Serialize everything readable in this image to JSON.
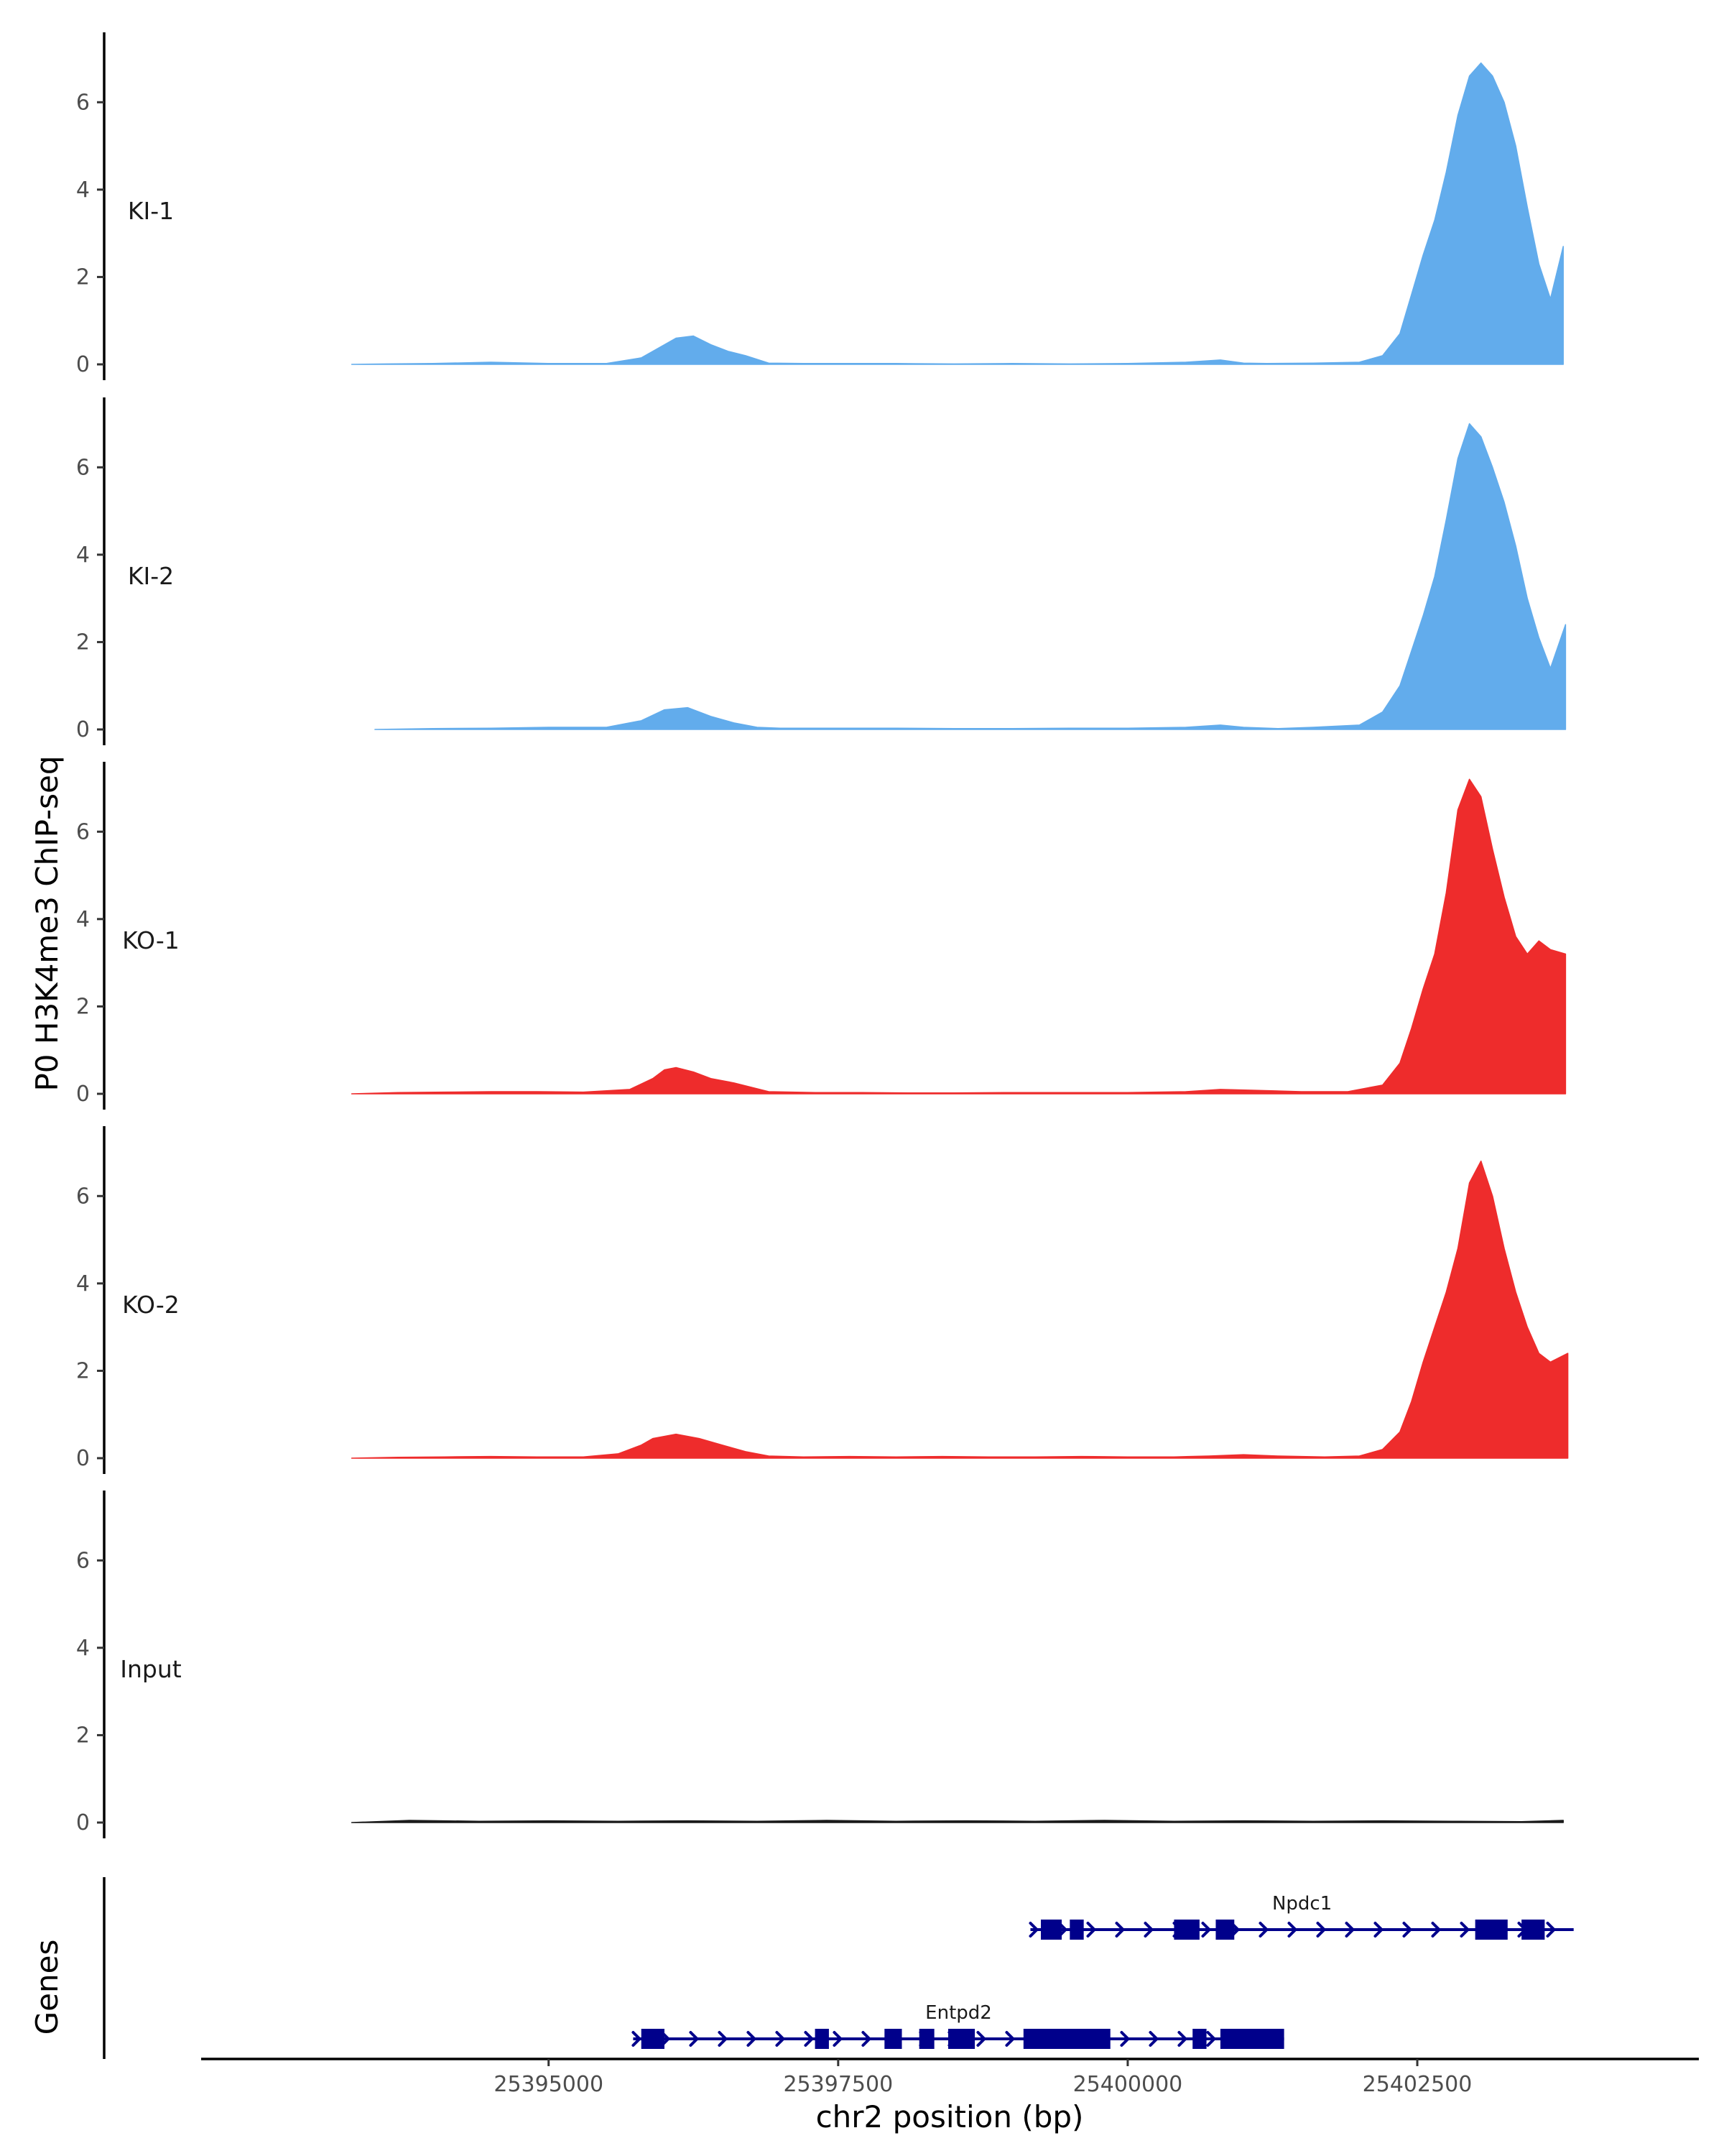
{
  "chart_data": {
    "type": "area",
    "title": "",
    "ylabel": "P0 H3K4me3 ChIP-seq",
    "genes_label": "Genes",
    "xlabel": "chr2 position (bp)",
    "xlim": [
      25392000,
      25404900
    ],
    "ylim": [
      0,
      7.6
    ],
    "x_ticks": [
      25395000,
      25397500,
      25400000,
      25402500
    ],
    "x_tick_labels": [
      "25395000",
      "25397500",
      "25400000",
      "25402500"
    ],
    "y_ticks": [
      0,
      2,
      4,
      6
    ],
    "y_tick_labels": [
      "0",
      "2",
      "4",
      "6"
    ],
    "grid": false,
    "legend": "none",
    "tracks": [
      {
        "name": "KI-1",
        "color": "#62ACEC",
        "x": [
          25393300,
          25393600,
          25394000,
          25394500,
          25395000,
          25395500,
          25395800,
          25396000,
          25396100,
          25396250,
          25396400,
          25396550,
          25396700,
          25396900,
          25397200,
          25397600,
          25398000,
          25398500,
          25399000,
          25399500,
          25400000,
          25400500,
          25400800,
          25401000,
          25401200,
          25401600,
          25402000,
          25402200,
          25402350,
          25402450,
          25402550,
          25402650,
          25402750,
          25402850,
          25402950,
          25403050,
          25403150,
          25403250,
          25403350,
          25403450,
          25403550,
          25403650,
          25403760,
          25403760
        ],
        "values": [
          0.0,
          0.01,
          0.02,
          0.05,
          0.02,
          0.02,
          0.15,
          0.45,
          0.6,
          0.65,
          0.45,
          0.3,
          0.2,
          0.03,
          0.02,
          0.02,
          0.02,
          0.01,
          0.02,
          0.01,
          0.02,
          0.05,
          0.1,
          0.03,
          0.02,
          0.03,
          0.05,
          0.2,
          0.7,
          1.6,
          2.5,
          3.3,
          4.4,
          5.7,
          6.6,
          6.9,
          6.6,
          6.0,
          5.0,
          3.6,
          2.3,
          1.5,
          2.7,
          0.0
        ]
      },
      {
        "name": "KI-2",
        "color": "#62ACEC",
        "x": [
          25393500,
          25394000,
          25394500,
          25395000,
          25395500,
          25395800,
          25396000,
          25396200,
          25396400,
          25396600,
          25396800,
          25397000,
          25397500,
          25398000,
          25398500,
          25399000,
          25399500,
          25400000,
          25400500,
          25400800,
          25401000,
          25401300,
          25401600,
          25402000,
          25402200,
          25402350,
          25402450,
          25402550,
          25402650,
          25402750,
          25402850,
          25402950,
          25403050,
          25403150,
          25403250,
          25403350,
          25403450,
          25403550,
          25403650,
          25403780,
          25403780
        ],
        "values": [
          0.0,
          0.02,
          0.03,
          0.05,
          0.05,
          0.2,
          0.45,
          0.5,
          0.3,
          0.15,
          0.05,
          0.03,
          0.03,
          0.03,
          0.02,
          0.02,
          0.03,
          0.03,
          0.05,
          0.1,
          0.05,
          0.02,
          0.05,
          0.1,
          0.4,
          1.0,
          1.8,
          2.6,
          3.5,
          4.8,
          6.2,
          7.0,
          6.7,
          6.0,
          5.2,
          4.2,
          3.0,
          2.1,
          1.4,
          2.4,
          0.0
        ]
      },
      {
        "name": "KO-1",
        "color": "#EE2C2C",
        "x": [
          25393300,
          25393700,
          25394100,
          25394500,
          25394900,
          25395300,
          25395700,
          25395900,
          25396000,
          25396100,
          25396250,
          25396400,
          25396600,
          25396900,
          25397300,
          25397700,
          25398100,
          25398500,
          25399000,
          25399500,
          25400000,
          25400500,
          25400800,
          25401100,
          25401500,
          25401900,
          25402200,
          25402350,
          25402450,
          25402550,
          25402650,
          25402750,
          25402850,
          25402950,
          25403050,
          25403150,
          25403250,
          25403350,
          25403450,
          25403550,
          25403650,
          25403780,
          25403780
        ],
        "values": [
          0.0,
          0.03,
          0.04,
          0.05,
          0.05,
          0.04,
          0.1,
          0.35,
          0.55,
          0.6,
          0.5,
          0.35,
          0.25,
          0.05,
          0.03,
          0.03,
          0.02,
          0.02,
          0.03,
          0.03,
          0.03,
          0.05,
          0.1,
          0.08,
          0.05,
          0.05,
          0.2,
          0.7,
          1.5,
          2.4,
          3.2,
          4.6,
          6.5,
          7.2,
          6.8,
          5.6,
          4.5,
          3.6,
          3.2,
          3.5,
          3.3,
          3.2,
          0.0
        ]
      },
      {
        "name": "KO-2",
        "color": "#EE2C2C",
        "x": [
          25393300,
          25393700,
          25394100,
          25394500,
          25394900,
          25395300,
          25395600,
          25395800,
          25395900,
          25396000,
          25396100,
          25396300,
          25396500,
          25396700,
          25396900,
          25397200,
          25397600,
          25398000,
          25398400,
          25398800,
          25399200,
          25399600,
          25400000,
          25400400,
          25400700,
          25401000,
          25401300,
          25401700,
          25402000,
          25402200,
          25402350,
          25402450,
          25402550,
          25402650,
          25402750,
          25402850,
          25402950,
          25403050,
          25403150,
          25403250,
          25403350,
          25403450,
          25403550,
          25403650,
          25403800,
          25403800
        ],
        "values": [
          0.0,
          0.02,
          0.03,
          0.04,
          0.03,
          0.03,
          0.1,
          0.3,
          0.45,
          0.5,
          0.55,
          0.45,
          0.3,
          0.15,
          0.05,
          0.03,
          0.04,
          0.03,
          0.04,
          0.03,
          0.03,
          0.04,
          0.03,
          0.03,
          0.05,
          0.08,
          0.05,
          0.03,
          0.05,
          0.2,
          0.6,
          1.3,
          2.2,
          3.0,
          3.8,
          4.8,
          6.3,
          6.8,
          6.0,
          4.8,
          3.8,
          3.0,
          2.4,
          2.2,
          2.4,
          0.0
        ]
      },
      {
        "name": "Input",
        "color": "#1A1A1A",
        "x": [
          25393300,
          25393800,
          25394400,
          25395000,
          25395600,
          25396200,
          25396800,
          25397400,
          25398000,
          25398600,
          25399200,
          25399800,
          25400400,
          25401000,
          25401600,
          25402200,
          25402800,
          25403400,
          25403760,
          25403760
        ],
        "values": [
          0.0,
          0.05,
          0.03,
          0.04,
          0.03,
          0.04,
          0.03,
          0.05,
          0.03,
          0.04,
          0.03,
          0.05,
          0.03,
          0.04,
          0.03,
          0.04,
          0.03,
          0.02,
          0.05,
          0.0
        ]
      }
    ],
    "genes": [
      {
        "name": "Npdc1",
        "color": "#00008B",
        "start": 25399160,
        "end": 25403850,
        "strand": "+",
        "exons": [
          [
            25399250,
            25399430
          ],
          [
            25399500,
            25399620
          ],
          [
            25400400,
            25400620
          ],
          [
            25400760,
            25400920
          ],
          [
            25403000,
            25403280
          ],
          [
            25403400,
            25403600
          ]
        ]
      },
      {
        "name": "Entpd2",
        "color": "#00008B",
        "start": 25395730,
        "end": 25401350,
        "strand": "+",
        "exons": [
          [
            25395800,
            25396000
          ],
          [
            25397300,
            25397420
          ],
          [
            25397900,
            25398050
          ],
          [
            25398200,
            25398330
          ],
          [
            25398450,
            25398680
          ],
          [
            25399100,
            25399850
          ],
          [
            25400560,
            25400680
          ],
          [
            25400800,
            25401350
          ]
        ]
      }
    ]
  }
}
